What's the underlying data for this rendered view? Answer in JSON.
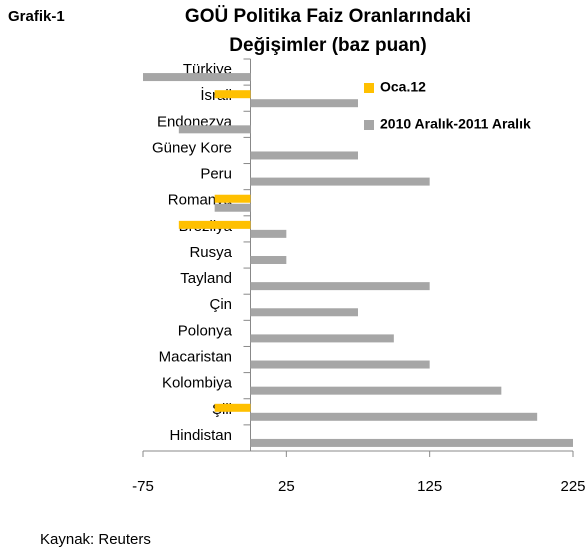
{
  "chart_data": {
    "type": "bar",
    "orientation": "horizontal",
    "label": "Grafik-1",
    "title": [
      "GOÜ Politika Faiz Oranlarındaki",
      "Değişimler (baz puan)"
    ],
    "categories": [
      "Türkiye",
      "İsrail",
      "Endonezya",
      "Güney Kore",
      "Peru",
      "Romanya",
      "Brezilya",
      "Rusya",
      "Tayland",
      "Çin",
      "Polonya",
      "Macaristan",
      "Kolombiya",
      "Şili",
      "Hindistan"
    ],
    "series": [
      {
        "name": "Oca.12",
        "color": "#ffc000",
        "values": [
          0,
          -25,
          0,
          0,
          0,
          -25,
          -50,
          0,
          0,
          0,
          0,
          0,
          0,
          -25,
          0
        ]
      },
      {
        "name": "2010 Aralık-2011 Aralık",
        "color": "#a6a6a6",
        "values": [
          -75,
          75,
          -50,
          75,
          125,
          -25,
          25,
          25,
          125,
          75,
          100,
          125,
          175,
          200,
          225
        ]
      }
    ],
    "xlim": [
      -75,
      225
    ],
    "xticks": [
      -75,
      25,
      125,
      225
    ],
    "source": "Kaynak: Reuters"
  }
}
